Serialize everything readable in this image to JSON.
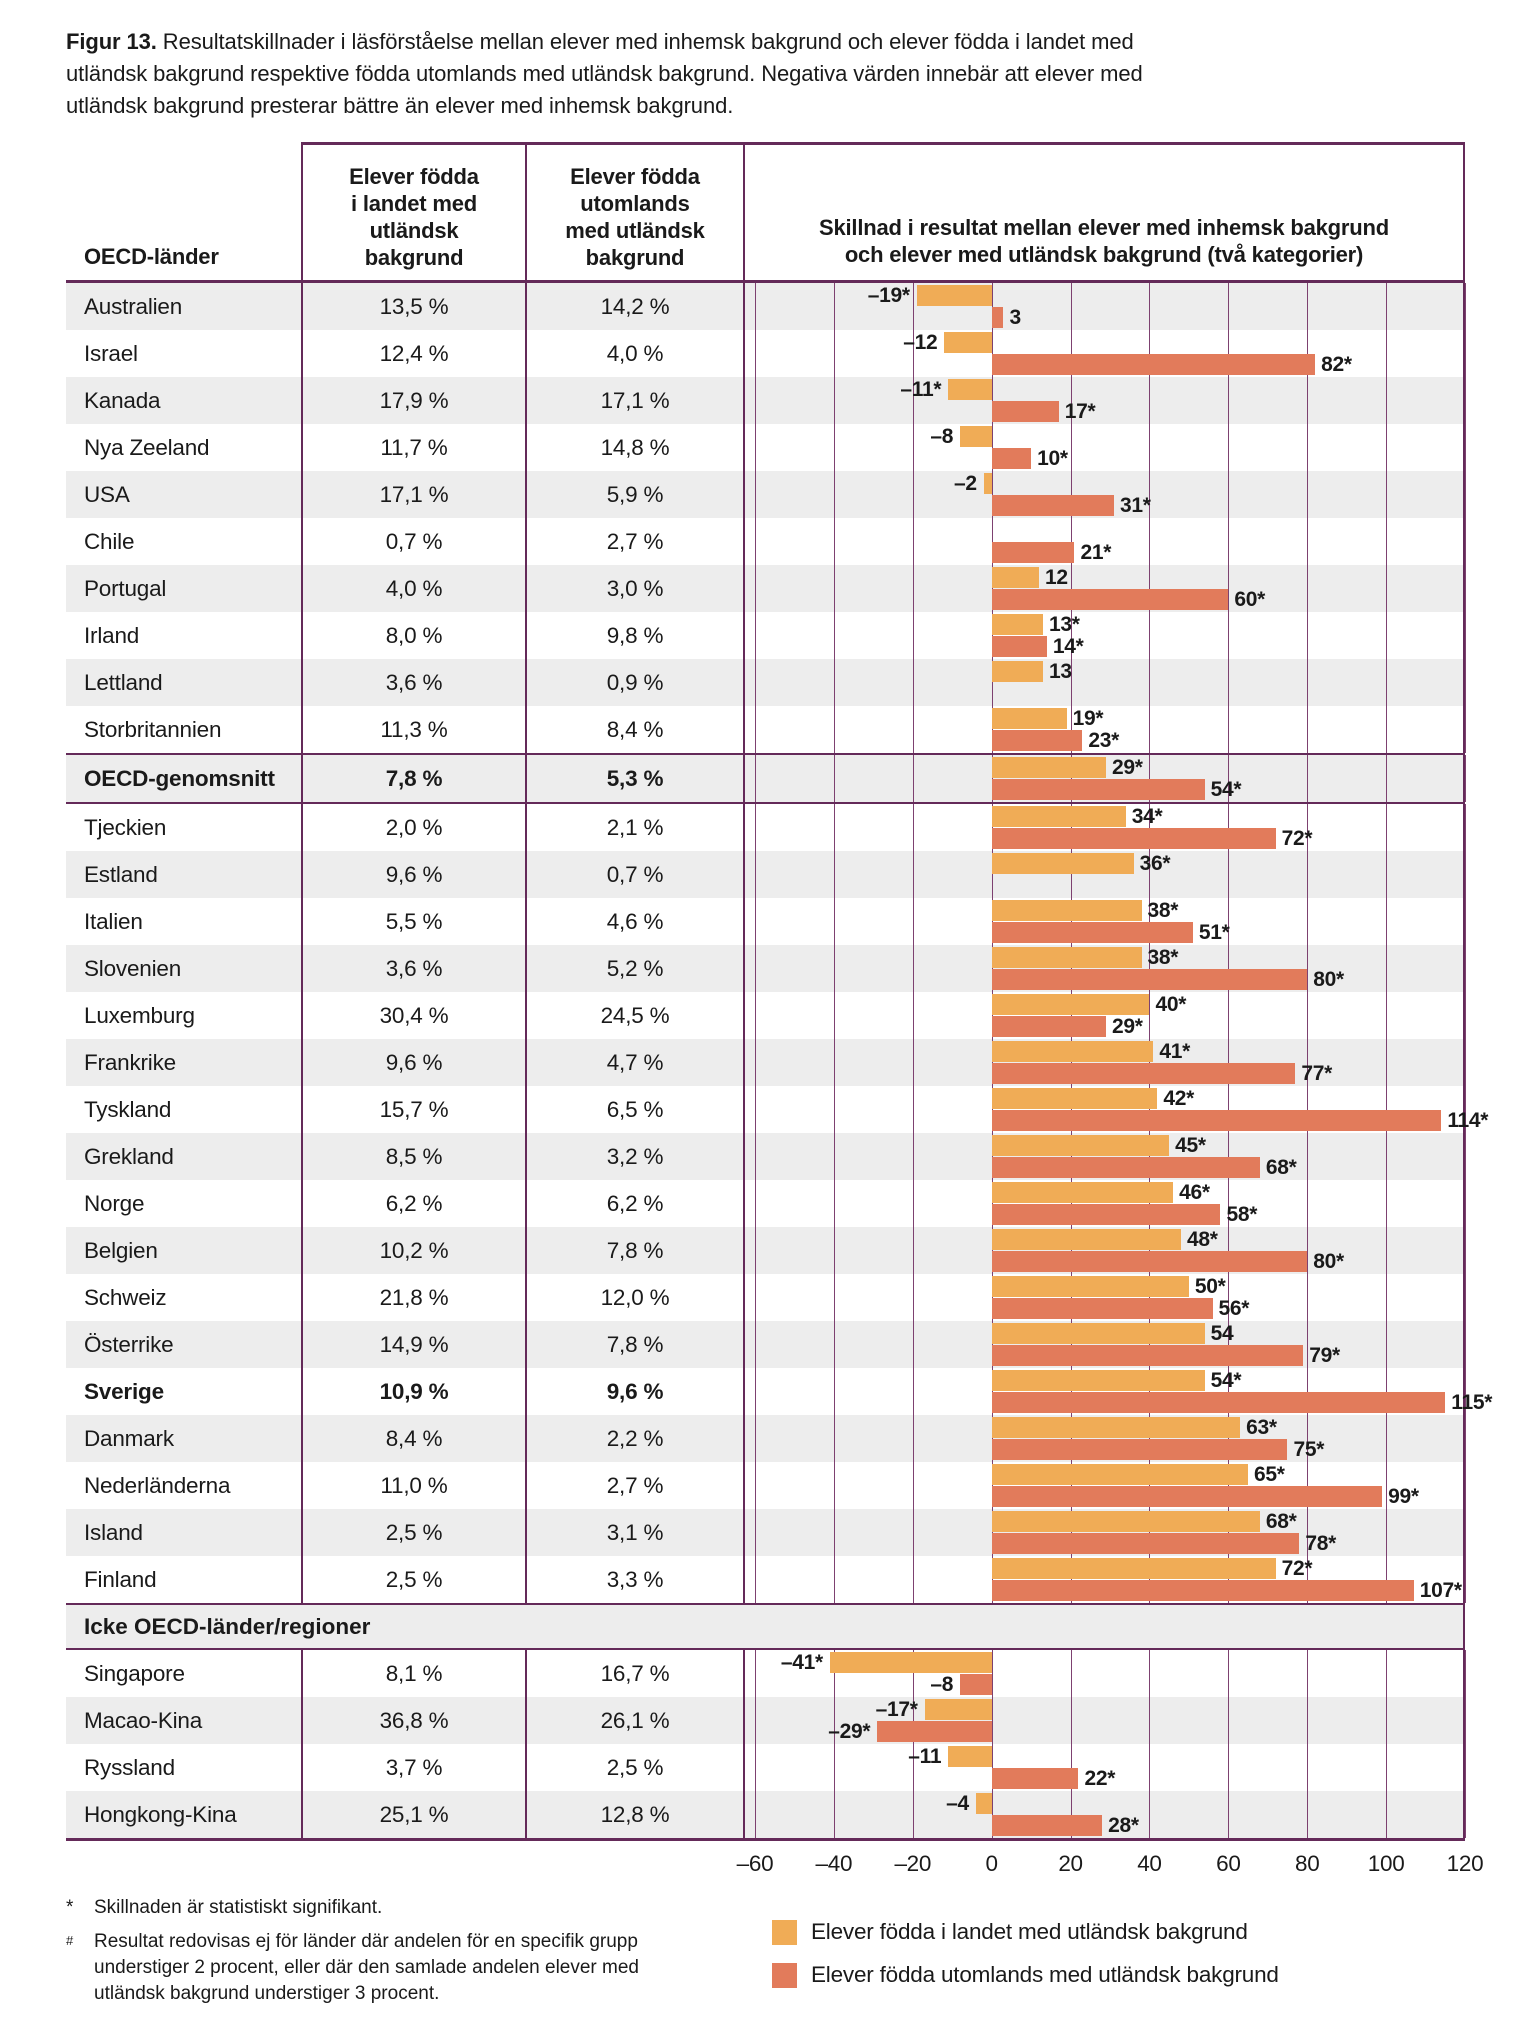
{
  "title": {
    "label": "Figur 13.",
    "text": "Resultatskillnader i läsförståelse mellan elever med inhemsk bakgrund och elever födda i landet med utländsk bakgrund respektive födda utomlands med utländsk bakgrund. Negativa värden innebär att elever med utländsk bakgrund presterar bättre än elever med inhemsk bakgrund."
  },
  "table": {
    "headers": {
      "countries": "OECD-länder",
      "born_in_country": "Elever födda\ni landet med\nutländsk\nbakgrund",
      "born_abroad": "Elever födda\nutomlands\nmed utländsk\nbakgrund",
      "chart": "Skillnad i resultat mellan elever med inhemsk bakgrund\noch elever med utländsk bakgrund (två kategorier)"
    }
  },
  "chart_data": {
    "type": "bar",
    "orientation": "horizontal",
    "title": "Skillnad i resultat mellan elever med inhemsk bakgrund och elever med utländsk bakgrund (två kategorier)",
    "xlim": [
      -60,
      120
    ],
    "x_ticks": [
      "–60",
      "–40",
      "–20",
      "0",
      "20",
      "40",
      "60",
      "80",
      "100",
      "120"
    ],
    "x_tick_values": [
      -60,
      -40,
      -20,
      0,
      20,
      40,
      60,
      80,
      100,
      120
    ],
    "grid": true,
    "series_names": [
      "Elever födda i landet med utländsk bakgrund",
      "Elever födda utomlands med utländsk bakgrund"
    ],
    "rows": [
      {
        "country": "Australien",
        "pct_born_in_country": "13,5 %",
        "pct_born_abroad": "14,2 %",
        "diff_in_country": -19,
        "diff_in_country_label": "–19*",
        "diff_abroad": 3,
        "diff_abroad_label": "3"
      },
      {
        "country": "Israel",
        "pct_born_in_country": "12,4 %",
        "pct_born_abroad": "4,0 %",
        "diff_in_country": -12,
        "diff_in_country_label": "–12",
        "diff_abroad": 82,
        "diff_abroad_label": "82*"
      },
      {
        "country": "Kanada",
        "pct_born_in_country": "17,9 %",
        "pct_born_abroad": "17,1 %",
        "diff_in_country": -11,
        "diff_in_country_label": "–11*",
        "diff_abroad": 17,
        "diff_abroad_label": "17*"
      },
      {
        "country": "Nya Zeeland",
        "pct_born_in_country": "11,7 %",
        "pct_born_abroad": "14,8 %",
        "diff_in_country": -8,
        "diff_in_country_label": "–8",
        "diff_abroad": 10,
        "diff_abroad_label": "10*"
      },
      {
        "country": "USA",
        "pct_born_in_country": "17,1 %",
        "pct_born_abroad": "5,9 %",
        "diff_in_country": -2,
        "diff_in_country_label": "–2",
        "diff_abroad": 31,
        "diff_abroad_label": "31*"
      },
      {
        "country": "Chile",
        "pct_born_in_country": "0,7 %",
        "pct_born_abroad": "2,7 %",
        "diff_in_country": null,
        "diff_in_country_label": "",
        "diff_abroad": 21,
        "diff_abroad_label": "21*"
      },
      {
        "country": "Portugal",
        "pct_born_in_country": "4,0 %",
        "pct_born_abroad": "3,0 %",
        "diff_in_country": 12,
        "diff_in_country_label": "12",
        "diff_abroad": 60,
        "diff_abroad_label": "60*"
      },
      {
        "country": "Irland",
        "pct_born_in_country": "8,0 %",
        "pct_born_abroad": "9,8 %",
        "diff_in_country": 13,
        "diff_in_country_label": "13*",
        "diff_abroad": 14,
        "diff_abroad_label": "14*"
      },
      {
        "country": "Lettland",
        "pct_born_in_country": "3,6 %",
        "pct_born_abroad": "0,9 %",
        "diff_in_country": 13,
        "diff_in_country_label": "13",
        "diff_abroad": null,
        "diff_abroad_label": ""
      },
      {
        "country": "Storbritannien",
        "pct_born_in_country": "11,3 %",
        "pct_born_abroad": "8,4 %",
        "diff_in_country": 19,
        "diff_in_country_label": "19*",
        "diff_abroad": 23,
        "diff_abroad_label": "23*"
      },
      {
        "country": "OECD-genomsnitt",
        "bold": true,
        "rule": true,
        "pct_born_in_country": "7,8 %",
        "pct_born_abroad": "5,3 %",
        "diff_in_country": 29,
        "diff_in_country_label": "29*",
        "diff_abroad": 54,
        "diff_abroad_label": "54*"
      },
      {
        "country": "Tjeckien",
        "pct_born_in_country": "2,0 %",
        "pct_born_abroad": "2,1 %",
        "diff_in_country": 34,
        "diff_in_country_label": "34*",
        "diff_abroad": 72,
        "diff_abroad_label": "72*"
      },
      {
        "country": "Estland",
        "pct_born_in_country": "9,6 %",
        "pct_born_abroad": "0,7 %",
        "diff_in_country": 36,
        "diff_in_country_label": "36*",
        "diff_abroad": null,
        "diff_abroad_label": ""
      },
      {
        "country": "Italien",
        "pct_born_in_country": "5,5 %",
        "pct_born_abroad": "4,6 %",
        "diff_in_country": 38,
        "diff_in_country_label": "38*",
        "diff_abroad": 51,
        "diff_abroad_label": "51*"
      },
      {
        "country": "Slovenien",
        "pct_born_in_country": "3,6 %",
        "pct_born_abroad": "5,2 %",
        "diff_in_country": 38,
        "diff_in_country_label": "38*",
        "diff_abroad": 80,
        "diff_abroad_label": "80*"
      },
      {
        "country": "Luxemburg",
        "pct_born_in_country": "30,4 %",
        "pct_born_abroad": "24,5 %",
        "diff_in_country": 40,
        "diff_in_country_label": "40*",
        "diff_abroad": 29,
        "diff_abroad_label": "29*"
      },
      {
        "country": "Frankrike",
        "pct_born_in_country": "9,6 %",
        "pct_born_abroad": "4,7 %",
        "diff_in_country": 41,
        "diff_in_country_label": "41*",
        "diff_abroad": 77,
        "diff_abroad_label": "77*"
      },
      {
        "country": "Tyskland",
        "pct_born_in_country": "15,7 %",
        "pct_born_abroad": "6,5 %",
        "diff_in_country": 42,
        "diff_in_country_label": "42*",
        "diff_abroad": 114,
        "diff_abroad_label": "114*"
      },
      {
        "country": "Grekland",
        "pct_born_in_country": "8,5 %",
        "pct_born_abroad": "3,2 %",
        "diff_in_country": 45,
        "diff_in_country_label": "45*",
        "diff_abroad": 68,
        "diff_abroad_label": "68*"
      },
      {
        "country": "Norge",
        "pct_born_in_country": "6,2 %",
        "pct_born_abroad": "6,2 %",
        "diff_in_country": 46,
        "diff_in_country_label": "46*",
        "diff_abroad": 58,
        "diff_abroad_label": "58*"
      },
      {
        "country": "Belgien",
        "pct_born_in_country": "10,2 %",
        "pct_born_abroad": "7,8 %",
        "diff_in_country": 48,
        "diff_in_country_label": "48*",
        "diff_abroad": 80,
        "diff_abroad_label": "80*"
      },
      {
        "country": "Schweiz",
        "pct_born_in_country": "21,8 %",
        "pct_born_abroad": "12,0 %",
        "diff_in_country": 50,
        "diff_in_country_label": "50*",
        "diff_abroad": 56,
        "diff_abroad_label": "56*"
      },
      {
        "country": "Österrike",
        "pct_born_in_country": "14,9 %",
        "pct_born_abroad": "7,8 %",
        "diff_in_country": 54,
        "diff_in_country_label": "54",
        "diff_abroad": 79,
        "diff_abroad_label": "79*"
      },
      {
        "country": "Sverige",
        "bold": true,
        "pct_born_in_country": "10,9 %",
        "pct_born_abroad": "9,6 %",
        "diff_in_country": 54,
        "diff_in_country_label": "54*",
        "diff_abroad": 115,
        "diff_abroad_label": "115*"
      },
      {
        "country": "Danmark",
        "pct_born_in_country": "8,4 %",
        "pct_born_abroad": "2,2 %",
        "diff_in_country": 63,
        "diff_in_country_label": "63*",
        "diff_abroad": 75,
        "diff_abroad_label": "75*"
      },
      {
        "country": "Nederländerna",
        "pct_born_in_country": "11,0 %",
        "pct_born_abroad": "2,7 %",
        "diff_in_country": 65,
        "diff_in_country_label": "65*",
        "diff_abroad": 99,
        "diff_abroad_label": "99*"
      },
      {
        "country": "Island",
        "pct_born_in_country": "2,5 %",
        "pct_born_abroad": "3,1 %",
        "diff_in_country": 68,
        "diff_in_country_label": "68*",
        "diff_abroad": 78,
        "diff_abroad_label": "78*"
      },
      {
        "country": "Finland",
        "pct_born_in_country": "2,5 %",
        "pct_born_abroad": "3,3 %",
        "diff_in_country": 72,
        "diff_in_country_label": "72*",
        "diff_abroad": 107,
        "diff_abroad_label": "107*"
      },
      {
        "type": "section",
        "country": "Icke OECD-länder/regioner"
      },
      {
        "country": "Singapore",
        "pct_born_in_country": "8,1 %",
        "pct_born_abroad": "16,7 %",
        "diff_in_country": -41,
        "diff_in_country_label": "–41*",
        "diff_abroad": -8,
        "diff_abroad_label": "–8"
      },
      {
        "country": "Macao-Kina",
        "pct_born_in_country": "36,8 %",
        "pct_born_abroad": "26,1 %",
        "diff_in_country": -17,
        "diff_in_country_label": "–17*",
        "diff_abroad": -29,
        "diff_abroad_label": "–29*"
      },
      {
        "country": "Ryssland",
        "pct_born_in_country": "3,7 %",
        "pct_born_abroad": "2,5 %",
        "diff_in_country": -11,
        "diff_in_country_label": "–11",
        "diff_abroad": 22,
        "diff_abroad_label": "22*"
      },
      {
        "country": "Hongkong-Kina",
        "pct_born_in_country": "25,1 %",
        "pct_born_abroad": "12,8 %",
        "diff_in_country": -4,
        "diff_in_country_label": "–4",
        "diff_abroad": 28,
        "diff_abroad_label": "28*"
      }
    ]
  },
  "legend": [
    {
      "label": "Elever födda i landet med utländsk bakgrund",
      "color": "#f0ac56"
    },
    {
      "label": "Elever födda utomlands med utländsk bakgrund",
      "color": "#e27b5b"
    }
  ],
  "footnotes": [
    {
      "marker": "*",
      "text": "Skillnaden är statistiskt signifikant."
    },
    {
      "marker": "#",
      "text": "Resultat redovisas ej för länder där andelen för en specifik grupp understiger 2 procent, eller där den samlade andelen elever med utländsk bakgrund understiger 3 procent."
    }
  ],
  "colors": {
    "bar_born_in_country": "#f0ac56",
    "bar_born_abroad": "#e27b5b",
    "border_purple": "#642a59",
    "gridline_purple": "#7d4170",
    "row_stripe_gray": "#ededed",
    "text": "#1a1a1a"
  }
}
